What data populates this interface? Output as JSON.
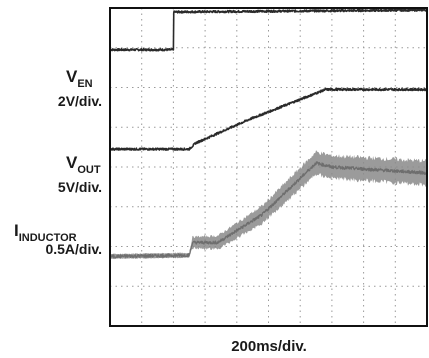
{
  "chart_data": {
    "type": "line",
    "grid": true,
    "divisions": {
      "x": 10,
      "y": 8
    },
    "xlabel": "200ms/div.",
    "x_unit": "div",
    "y_unit": "div",
    "series": [
      {
        "name": "EN",
        "name_prefix": "V",
        "scale": "2V/div.",
        "color": "#2a2a2a",
        "noise": 0.05,
        "points": [
          [
            0,
            6.95
          ],
          [
            2.0,
            6.95
          ],
          [
            2.0,
            7.9
          ],
          [
            10,
            7.95
          ]
        ]
      },
      {
        "name": "OUT",
        "name_prefix": "V",
        "scale": "5V/div.",
        "color": "#2a2a2a",
        "noise": 0.05,
        "points": [
          [
            0,
            4.45
          ],
          [
            2.5,
            4.45
          ],
          [
            2.7,
            4.6
          ],
          [
            4.4,
            5.2
          ],
          [
            6.8,
            5.95
          ],
          [
            10,
            5.95
          ]
        ]
      },
      {
        "name": "INDUCTOR",
        "name_prefix": "I",
        "scale": "0.5A/div.",
        "color": "#6e6e6e",
        "noise": 0.08,
        "points": [
          [
            0,
            1.75
          ],
          [
            2.5,
            1.78
          ],
          [
            2.6,
            2.1
          ],
          [
            3.4,
            2.1
          ],
          [
            4.8,
            2.8
          ],
          [
            6.5,
            4.1
          ],
          [
            7.0,
            4.0
          ],
          [
            10,
            3.85
          ]
        ],
        "band": [
          [
            0,
            0.06
          ],
          [
            2.5,
            0.06
          ],
          [
            2.6,
            0.14
          ],
          [
            4.8,
            0.22
          ],
          [
            6.5,
            0.28
          ],
          [
            10,
            0.3
          ]
        ]
      }
    ]
  }
}
